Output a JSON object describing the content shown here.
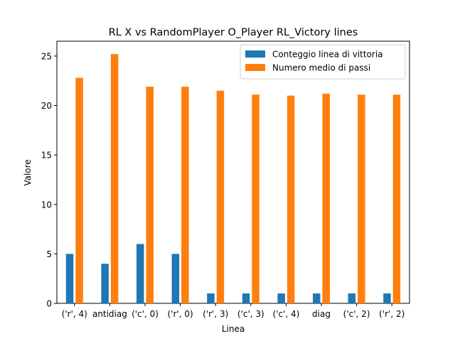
{
  "chart_data": {
    "type": "bar",
    "title": "RL X vs RandomPlayer O_Player RL_Victory lines",
    "xlabel": "Linea",
    "ylabel": "Valore",
    "ylim": [
      0,
      26.5
    ],
    "yticks": [
      0,
      5,
      10,
      15,
      20,
      25
    ],
    "legend_position": "top-right",
    "grid": false,
    "categories": [
      "('r', 4)",
      "antidiag",
      "('c', 0)",
      "('r', 0)",
      "('r', 3)",
      "('c', 3)",
      "('c', 4)",
      "diag",
      "('c', 2)",
      "('r', 2)"
    ],
    "series": [
      {
        "name": "Conteggio linea di vittoria",
        "color": "#1f77b4",
        "values": [
          5,
          4,
          6,
          5,
          1,
          1,
          1,
          1,
          1,
          1
        ]
      },
      {
        "name": "Numero medio di passi",
        "color": "#ff7f0e",
        "values": [
          22.8,
          25.2,
          21.9,
          21.9,
          21.5,
          21.1,
          21.0,
          21.2,
          21.1,
          21.1
        ]
      }
    ]
  }
}
